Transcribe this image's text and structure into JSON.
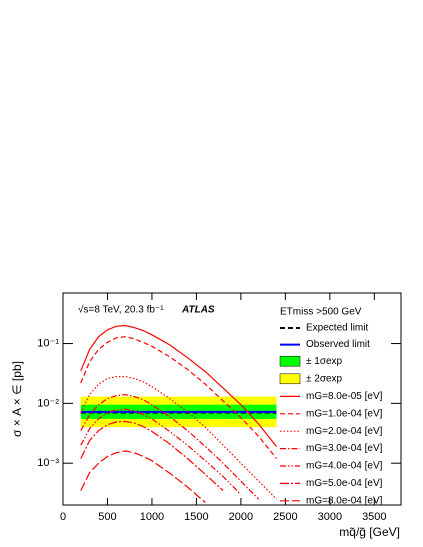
{
  "chart_data": {
    "type": "line",
    "title": "ATLAS",
    "annotations": [
      "√s=8 TeV, 20.3 fb⁻¹"
    ],
    "x_label": "mq̃/g̃ [GeV]",
    "y_label": "σ × A × ∈ [pb]",
    "legend_title": "ETmiss >500 GeV",
    "log_y": true,
    "xlim": [
      0,
      3800
    ],
    "xticks": [
      0,
      500,
      1000,
      1500,
      2000,
      2500,
      3000,
      3500
    ],
    "ylim": [
      0.0002,
      0.7
    ],
    "yticks": [
      {
        "value": 0.001,
        "label": "10⁻³"
      },
      {
        "value": 0.01,
        "label": "10⁻²"
      },
      {
        "value": 0.1,
        "label": "10⁻¹"
      }
    ],
    "bands": [
      {
        "name": "± 2σexp",
        "color": "#ffff00",
        "x": [
          200,
          2400
        ],
        "low": [
          0.004,
          0.004
        ],
        "high": [
          0.013,
          0.013
        ]
      },
      {
        "name": "± 1σexp",
        "color": "#00ff00",
        "x": [
          200,
          2400
        ],
        "low": [
          0.0055,
          0.0055
        ],
        "high": [
          0.0095,
          0.0095
        ]
      }
    ],
    "limits": [
      {
        "name": "Expected limit",
        "color": "#000000",
        "style": "dashed",
        "x": [
          200,
          2400
        ],
        "values": [
          0.007,
          0.007
        ]
      },
      {
        "name": "Observed limit",
        "color": "#0000ff",
        "style": "solid",
        "x": [
          200,
          2400
        ],
        "values": [
          0.0072,
          0.0072
        ]
      }
    ],
    "x": [
      200,
      300,
      400,
      500,
      600,
      700,
      800,
      900,
      1000,
      1200,
      1400,
      1600,
      1800,
      2000,
      2200,
      2400
    ],
    "series": [
      {
        "name": "mG=8.0e-05 [eV]",
        "color": "#ff0000",
        "style": "solid",
        "values": [
          0.035,
          0.08,
          0.13,
          0.17,
          0.195,
          0.2,
          0.185,
          0.165,
          0.14,
          0.095,
          0.058,
          0.034,
          0.018,
          0.0095,
          0.0045,
          0.0019
        ]
      },
      {
        "name": "mG=1.0e-04 [eV]",
        "color": "#ff0000",
        "style": "dashed",
        "values": [
          0.022,
          0.05,
          0.08,
          0.105,
          0.125,
          0.13,
          0.12,
          0.105,
          0.09,
          0.06,
          0.037,
          0.021,
          0.011,
          0.0058,
          0.0028,
          0.0012
        ]
      },
      {
        "name": "mG=2.0e-04 [eV]",
        "color": "#ff0000",
        "style": "dotted",
        "values": [
          0.007,
          0.014,
          0.021,
          0.026,
          0.028,
          0.028,
          0.026,
          0.023,
          0.019,
          0.012,
          0.0072,
          0.004,
          0.002,
          0.001,
          0.0005,
          0.00025
        ]
      },
      {
        "name": "mG=3.0e-04 [eV]",
        "color": "#ff0000",
        "style": "dashdot",
        "values": [
          0.0035,
          0.0065,
          0.0095,
          0.012,
          0.0135,
          0.014,
          0.013,
          0.0115,
          0.0095,
          0.006,
          0.0035,
          0.0019,
          0.001,
          0.0005,
          0.00025,
          null
        ]
      },
      {
        "name": "mG=4.0e-04 [eV]",
        "color": "#ff0000",
        "style": "dashdotdot",
        "values": [
          0.002,
          0.0038,
          0.0055,
          0.007,
          0.0078,
          0.008,
          0.0075,
          0.0066,
          0.0055,
          0.0034,
          0.002,
          0.0011,
          0.0006,
          0.0003,
          null,
          null
        ]
      },
      {
        "name": "mG=5.0e-04 [eV]",
        "color": "#ff0000",
        "style": "longdashdot",
        "values": [
          0.0012,
          0.0024,
          0.0035,
          0.0044,
          0.0049,
          0.005,
          0.0047,
          0.0041,
          0.0034,
          0.0021,
          0.0012,
          0.00065,
          0.00035,
          null,
          null,
          null
        ]
      },
      {
        "name": "mG=8.0e-04 [eV]",
        "color": "#ff0000",
        "style": "longdash",
        "values": [
          0.00035,
          0.0007,
          0.001,
          0.0013,
          0.0015,
          0.0016,
          0.0015,
          0.0013,
          0.0011,
          0.00068,
          0.0004,
          0.00022,
          null,
          null,
          null,
          null
        ]
      }
    ]
  }
}
